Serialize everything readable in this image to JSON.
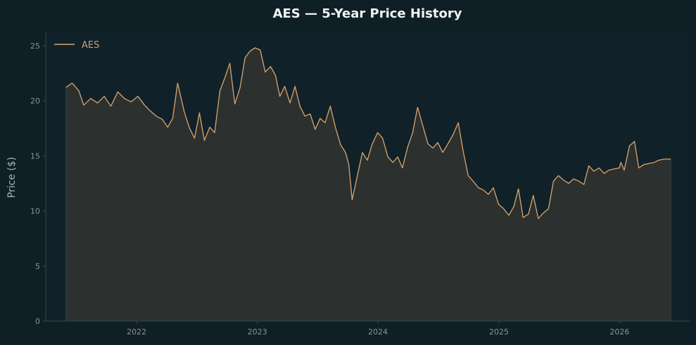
{
  "colors": {
    "background": "#0f1f26",
    "plot_background": "#102129",
    "line": "#d9a46c",
    "fill": "#2c302f",
    "spine": "#39474d",
    "grid": "#1a2a31"
  },
  "chart_data": {
    "type": "area",
    "title": "AES — 5-Year Price History",
    "xlabel": "",
    "ylabel": "Price ($)",
    "ylim": [
      0,
      26.2
    ],
    "xlim": [
      "2021-04-01",
      "2026-08-01"
    ],
    "xticks": [
      "2022",
      "2023",
      "2024",
      "2025",
      "2026"
    ],
    "yticks": [
      "0",
      "5",
      "10",
      "15",
      "20",
      "25"
    ],
    "grid": false,
    "legend": "top-left",
    "series": [
      {
        "name": "AES",
        "x": [
          "2021-06-01",
          "2021-06-20",
          "2021-07-10",
          "2021-07-25",
          "2021-08-15",
          "2021-09-05",
          "2021-09-25",
          "2021-10-15",
          "2021-11-05",
          "2021-11-25",
          "2021-12-15",
          "2022-01-05",
          "2022-01-25",
          "2022-02-10",
          "2022-03-01",
          "2022-03-20",
          "2022-04-05",
          "2022-04-20",
          "2022-05-05",
          "2022-05-25",
          "2022-06-10",
          "2022-06-25",
          "2022-07-10",
          "2022-07-25",
          "2022-08-10",
          "2022-08-25",
          "2022-09-10",
          "2022-09-25",
          "2022-10-10",
          "2022-10-25",
          "2022-11-10",
          "2022-11-25",
          "2022-12-10",
          "2022-12-25",
          "2023-01-10",
          "2023-01-25",
          "2023-02-10",
          "2023-02-25",
          "2023-03-10",
          "2023-03-25",
          "2023-04-10",
          "2023-04-25",
          "2023-05-10",
          "2023-05-25",
          "2023-06-10",
          "2023-06-25",
          "2023-07-10",
          "2023-07-25",
          "2023-08-10",
          "2023-08-25",
          "2023-09-10",
          "2023-09-25",
          "2023-10-05",
          "2023-10-15",
          "2023-10-30",
          "2023-11-15",
          "2023-11-30",
          "2023-12-15",
          "2023-12-31",
          "2024-01-15",
          "2024-01-31",
          "2024-02-15",
          "2024-03-01",
          "2024-03-15",
          "2024-03-31",
          "2024-04-15",
          "2024-04-30",
          "2024-05-15",
          "2024-05-31",
          "2024-06-15",
          "2024-06-30",
          "2024-07-15",
          "2024-07-31",
          "2024-08-15",
          "2024-08-31",
          "2024-09-15",
          "2024-09-30",
          "2024-10-15",
          "2024-10-31",
          "2024-11-15",
          "2024-11-30",
          "2024-12-15",
          "2024-12-31",
          "2025-01-15",
          "2025-01-31",
          "2025-02-15",
          "2025-03-01",
          "2025-03-15",
          "2025-03-31",
          "2025-04-15",
          "2025-04-30",
          "2025-05-15",
          "2025-05-31",
          "2025-06-15",
          "2025-06-30",
          "2025-07-15",
          "2025-07-31",
          "2025-08-15",
          "2025-08-31",
          "2025-09-15",
          "2025-09-30",
          "2025-10-15",
          "2025-10-31",
          "2025-11-15",
          "2025-11-30",
          "2025-12-15",
          "2025-12-31",
          "2026-01-05",
          "2026-01-15",
          "2026-01-31",
          "2026-02-15",
          "2026-02-28",
          "2026-03-15",
          "2026-03-31",
          "2026-04-15",
          "2026-04-30",
          "2026-05-15",
          "2026-05-31",
          "2026-06-05"
        ],
        "values": [
          21.2,
          21.6,
          20.9,
          19.6,
          20.2,
          19.8,
          20.4,
          19.5,
          20.8,
          20.2,
          19.9,
          20.4,
          19.6,
          19.1,
          18.6,
          18.3,
          17.6,
          18.4,
          21.6,
          19.0,
          17.5,
          16.6,
          18.9,
          16.4,
          17.6,
          17.1,
          20.9,
          22.1,
          23.4,
          19.7,
          21.2,
          23.9,
          24.5,
          24.8,
          24.6,
          22.6,
          23.1,
          22.3,
          20.4,
          21.3,
          19.8,
          21.3,
          19.5,
          18.6,
          18.8,
          17.4,
          18.4,
          18.0,
          19.5,
          17.6,
          16.0,
          15.3,
          14.2,
          11.0,
          13.1,
          15.3,
          14.6,
          16.1,
          17.1,
          16.6,
          14.9,
          14.4,
          14.9,
          13.9,
          15.8,
          17.1,
          19.4,
          17.8,
          16.1,
          15.7,
          16.2,
          15.3,
          16.1,
          16.9,
          18.0,
          15.4,
          13.2,
          12.7,
          12.1,
          11.9,
          11.5,
          12.1,
          10.6,
          10.2,
          9.6,
          10.4,
          12.0,
          9.4,
          9.7,
          11.4,
          9.3,
          9.8,
          10.2,
          12.7,
          13.2,
          12.8,
          12.5,
          12.9,
          12.7,
          12.4,
          14.1,
          13.6,
          13.9,
          13.4,
          13.7,
          13.8,
          13.9,
          14.4,
          13.7,
          15.9,
          16.3,
          13.9,
          14.2,
          14.3,
          14.4,
          14.6,
          14.7,
          14.7,
          14.7
        ]
      }
    ]
  }
}
